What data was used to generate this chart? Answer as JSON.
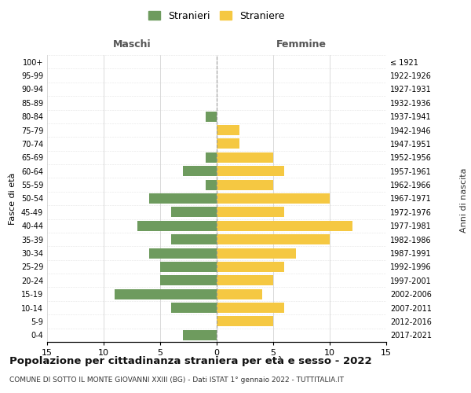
{
  "age_groups": [
    "0-4",
    "5-9",
    "10-14",
    "15-19",
    "20-24",
    "25-29",
    "30-34",
    "35-39",
    "40-44",
    "45-49",
    "50-54",
    "55-59",
    "60-64",
    "65-69",
    "70-74",
    "75-79",
    "80-84",
    "85-89",
    "90-94",
    "95-99",
    "100+"
  ],
  "birth_years": [
    "2017-2021",
    "2012-2016",
    "2007-2011",
    "2002-2006",
    "1997-2001",
    "1992-1996",
    "1987-1991",
    "1982-1986",
    "1977-1981",
    "1972-1976",
    "1967-1971",
    "1962-1966",
    "1957-1961",
    "1952-1956",
    "1947-1951",
    "1942-1946",
    "1937-1941",
    "1932-1936",
    "1927-1931",
    "1922-1926",
    "≤ 1921"
  ],
  "maschi": [
    3,
    0,
    4,
    9,
    5,
    5,
    6,
    4,
    7,
    4,
    6,
    1,
    3,
    1,
    0,
    0,
    1,
    0,
    0,
    0,
    0
  ],
  "femmine": [
    0,
    5,
    6,
    4,
    5,
    6,
    7,
    10,
    12,
    6,
    10,
    5,
    6,
    5,
    2,
    2,
    0,
    0,
    0,
    0,
    0
  ],
  "color_maschi": "#6e9b5e",
  "color_femmine": "#f5c842",
  "background_color": "#ffffff",
  "grid_color": "#cccccc",
  "title": "Popolazione per cittadinanza straniera per età e sesso - 2022",
  "subtitle": "COMUNE DI SOTTO IL MONTE GIOVANNI XXIII (BG) - Dati ISTAT 1° gennaio 2022 - TUTTITALIA.IT",
  "xlabel_left": "Maschi",
  "xlabel_right": "Femmine",
  "ylabel_left": "Fasce di età",
  "ylabel_right": "Anni di nascita",
  "legend_maschi": "Stranieri",
  "legend_femmine": "Straniere",
  "xlim": 15,
  "figsize": [
    6.0,
    5.0
  ],
  "dpi": 100
}
